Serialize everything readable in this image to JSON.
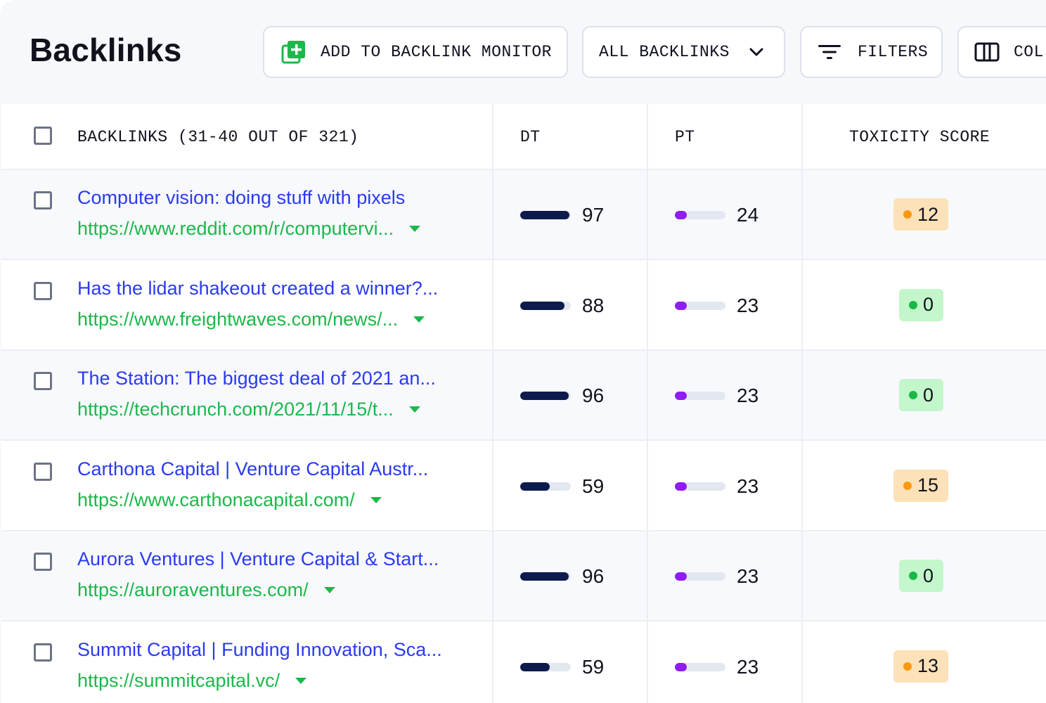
{
  "page_title": "Backlinks",
  "toolbar": {
    "add_monitor_label": "ADD TO BACKLINK MONITOR",
    "filter_select_label": "ALL BACKLINKS",
    "filters_label": "FILTERS",
    "columns_label": "COL"
  },
  "table": {
    "headers": {
      "backlinks": "BACKLINKS (31-40 OUT OF 321)",
      "dt": "DT",
      "pt": "PT",
      "toxicity": "TOXICITY SCORE"
    },
    "rows": [
      {
        "title": "Computer vision: doing stuff with pixels",
        "url": "https://www.reddit.com/r/computervi...",
        "dt": 97,
        "pt": 24,
        "toxicity": 12,
        "toxicity_level": "orange"
      },
      {
        "title": "Has the lidar shakeout created a winner?...",
        "url": "https://www.freightwaves.com/news/...",
        "dt": 88,
        "pt": 23,
        "toxicity": 0,
        "toxicity_level": "green"
      },
      {
        "title": "The Station: The biggest deal of 2021 an...",
        "url": "https://techcrunch.com/2021/11/15/t...",
        "dt": 96,
        "pt": 23,
        "toxicity": 0,
        "toxicity_level": "green"
      },
      {
        "title": "Carthona Capital | Venture Capital Austr...",
        "url": "https://www.carthonacapital.com/",
        "dt": 59,
        "pt": 23,
        "toxicity": 15,
        "toxicity_level": "orange"
      },
      {
        "title": "Aurora Ventures | Venture Capital & Start...",
        "url": "https://auroraventures.com/",
        "dt": 96,
        "pt": 23,
        "toxicity": 0,
        "toxicity_level": "green"
      },
      {
        "title": "Summit Capital | Funding Innovation, Sca...",
        "url": "https://summitcapital.vc/",
        "dt": 59,
        "pt": 23,
        "toxicity": 13,
        "toxicity_level": "orange"
      }
    ]
  },
  "colors": {
    "link_title": "#2a3bf0",
    "link_url": "#1cb84a",
    "dt_bar": "#0d1b4c",
    "pt_bar": "#8f1cf2",
    "toxicity_low": "#c4f6cb",
    "toxicity_medium": "#fde1b8"
  },
  "icons": {
    "add_monitor": "plus-square-icon",
    "filter_select": "chevron-down-icon",
    "filters": "filter-lines-icon",
    "columns": "columns-icon",
    "url_dropdown": "caret-down-icon"
  }
}
